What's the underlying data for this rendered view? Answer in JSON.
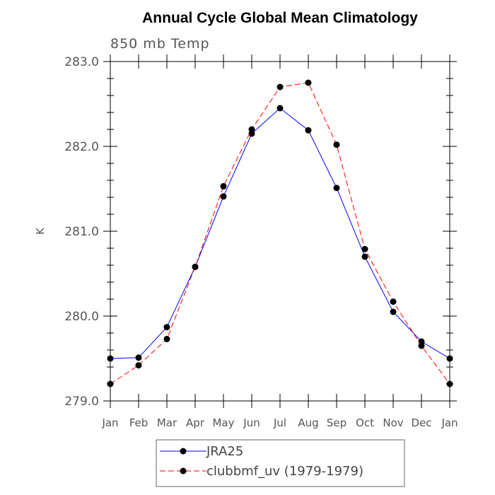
{
  "chart_data": {
    "type": "line",
    "title": "Annual Cycle Global Mean Climatology",
    "subtitle": "850 mb Temp",
    "ylabel": "K",
    "xlabel": "",
    "ylim": [
      279.0,
      283.0
    ],
    "yticks": [
      "279.0",
      "280.0",
      "281.0",
      "282.0",
      "283.0"
    ],
    "categories": [
      "Jan",
      "Feb",
      "Mar",
      "Apr",
      "May",
      "Jun",
      "Jul",
      "Aug",
      "Sep",
      "Oct",
      "Nov",
      "Dec",
      "Jan"
    ],
    "series": [
      {
        "name": "JRA25",
        "color": "#0000ff",
        "dash": "solid",
        "values": [
          279.5,
          279.51,
          279.87,
          280.58,
          281.41,
          282.15,
          282.45,
          282.19,
          281.51,
          280.7,
          280.05,
          279.7,
          279.5
        ]
      },
      {
        "name": "clubbmf_uv (1979-1979)",
        "color": "#ff0000",
        "dash": "dashed",
        "values": [
          279.2,
          279.42,
          279.73,
          280.58,
          281.53,
          282.2,
          282.7,
          282.75,
          282.02,
          280.79,
          280.17,
          279.65,
          279.2
        ]
      }
    ],
    "grid": false,
    "legend_position": "bottom"
  }
}
